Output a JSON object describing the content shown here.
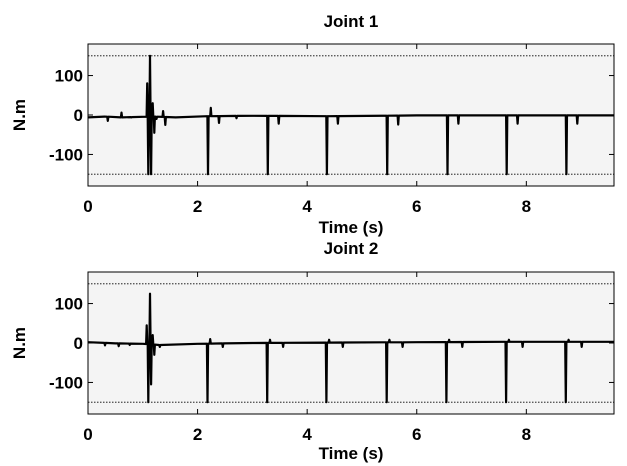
{
  "chart_data": [
    {
      "type": "line",
      "title": "Joint 1",
      "xlabel": "Time (s)",
      "ylabel": "N.m",
      "xlim": [
        0,
        9.6
      ],
      "ylim": [
        -180,
        180
      ],
      "xticks": [
        0,
        2,
        4,
        6,
        8
      ],
      "yticks": [
        100,
        0,
        -100
      ],
      "xtick_labels": [
        "0",
        "2",
        "4",
        "6",
        "8"
      ],
      "ytick_labels": [
        "100",
        "0",
        "-100"
      ],
      "grid": false,
      "limit_lines": [
        150,
        -150
      ],
      "series": [
        {
          "baseline": [
            [
              0,
              -6
            ],
            [
              0.3,
              -4
            ],
            [
              0.6,
              -6
            ],
            [
              1.2,
              -4
            ],
            [
              1.6,
              -6
            ],
            [
              2.2,
              -3
            ],
            [
              3.0,
              -2
            ],
            [
              4.4,
              -3
            ],
            [
              6.0,
              -1
            ],
            [
              7.6,
              -1
            ],
            [
              9.6,
              -1
            ]
          ],
          "spikes": [
            {
              "x": 0.35,
              "y": -15
            },
            {
              "x": 0.6,
              "y": 6
            },
            {
              "x": 0.78,
              "y": -6
            },
            {
              "x": 1.07,
              "y": 80
            },
            {
              "x": 1.09,
              "y": -150
            },
            {
              "x": 1.12,
              "y": 150
            },
            {
              "x": 1.14,
              "y": -150
            },
            {
              "x": 1.17,
              "y": 30
            },
            {
              "x": 1.2,
              "y": -45
            },
            {
              "x": 1.24,
              "y": -10
            },
            {
              "x": 1.36,
              "y": 10
            },
            {
              "x": 1.4,
              "y": -25
            },
            {
              "x": 2.18,
              "y": -150
            },
            {
              "x": 2.23,
              "y": 18
            },
            {
              "x": 2.38,
              "y": -20
            },
            {
              "x": 2.7,
              "y": -8
            },
            {
              "x": 3.27,
              "y": -150
            },
            {
              "x": 3.47,
              "y": -22
            },
            {
              "x": 4.35,
              "y": -150
            },
            {
              "x": 4.55,
              "y": -22
            },
            {
              "x": 5.45,
              "y": -150
            },
            {
              "x": 5.65,
              "y": -24
            },
            {
              "x": 6.55,
              "y": -150
            },
            {
              "x": 6.75,
              "y": -22
            },
            {
              "x": 7.63,
              "y": -150
            },
            {
              "x": 7.83,
              "y": -22
            },
            {
              "x": 8.72,
              "y": -150
            },
            {
              "x": 8.92,
              "y": -22
            }
          ]
        }
      ]
    },
    {
      "type": "line",
      "title": "Joint 2",
      "xlabel": "Time (s)",
      "ylabel": "N.m",
      "xlim": [
        0,
        9.6
      ],
      "ylim": [
        -180,
        180
      ],
      "xticks": [
        0,
        2,
        4,
        6,
        8
      ],
      "yticks": [
        100,
        0,
        -100
      ],
      "xtick_labels": [
        "0",
        "2",
        "4",
        "6",
        "8"
      ],
      "ytick_labels": [
        "100",
        "0",
        "-100"
      ],
      "grid": false,
      "limit_lines": [
        150,
        -150
      ],
      "series": [
        {
          "baseline": [
            [
              0,
              2
            ],
            [
              0.5,
              -1
            ],
            [
              1.0,
              -2
            ],
            [
              1.3,
              -5
            ],
            [
              2.0,
              -2
            ],
            [
              3.0,
              0
            ],
            [
              4.4,
              1
            ],
            [
              6.0,
              2
            ],
            [
              7.6,
              3
            ],
            [
              9.6,
              3
            ]
          ],
          "spikes": [
            {
              "x": 0.3,
              "y": -6
            },
            {
              "x": 0.55,
              "y": -8
            },
            {
              "x": 0.75,
              "y": -5
            },
            {
              "x": 1.06,
              "y": 45
            },
            {
              "x": 1.09,
              "y": -150
            },
            {
              "x": 1.12,
              "y": 125
            },
            {
              "x": 1.14,
              "y": -105
            },
            {
              "x": 1.17,
              "y": 20
            },
            {
              "x": 1.2,
              "y": -30
            },
            {
              "x": 1.3,
              "y": -10
            },
            {
              "x": 2.17,
              "y": -150
            },
            {
              "x": 2.22,
              "y": 10
            },
            {
              "x": 2.45,
              "y": -10
            },
            {
              "x": 3.26,
              "y": -150
            },
            {
              "x": 3.31,
              "y": 8
            },
            {
              "x": 3.55,
              "y": -10
            },
            {
              "x": 4.34,
              "y": -150
            },
            {
              "x": 4.39,
              "y": 8
            },
            {
              "x": 4.64,
              "y": -10
            },
            {
              "x": 5.44,
              "y": -150
            },
            {
              "x": 5.49,
              "y": 8
            },
            {
              "x": 5.73,
              "y": -10
            },
            {
              "x": 6.53,
              "y": -150
            },
            {
              "x": 6.58,
              "y": 8
            },
            {
              "x": 6.82,
              "y": -10
            },
            {
              "x": 7.62,
              "y": -150
            },
            {
              "x": 7.67,
              "y": 8
            },
            {
              "x": 7.92,
              "y": -10
            },
            {
              "x": 8.71,
              "y": -150
            },
            {
              "x": 8.76,
              "y": 8
            },
            {
              "x": 9.0,
              "y": -10
            }
          ]
        }
      ]
    }
  ]
}
